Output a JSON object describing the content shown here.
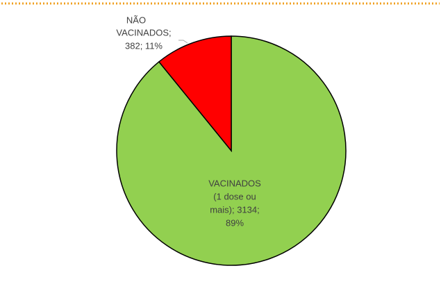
{
  "chart_data": {
    "type": "pie",
    "values": [
      3134,
      382
    ],
    "value_labels": [
      [
        "VACINADOS",
        "(1 dose ou",
        "mais); 3134;",
        "89%"
      ],
      [
        "NÃO",
        "VACINADOS;",
        "382; 11%"
      ]
    ],
    "colors": [
      "#92d050",
      "#ff0000"
    ]
  }
}
